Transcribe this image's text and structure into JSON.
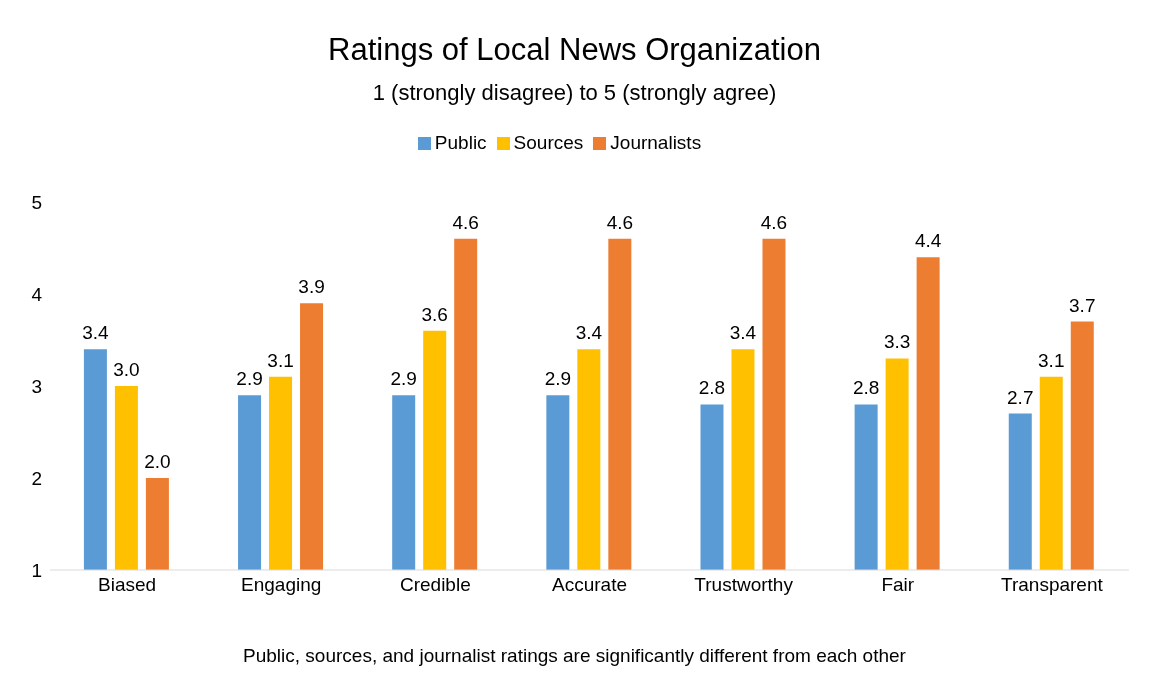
{
  "chart_data": {
    "type": "bar",
    "title": "Ratings of Local News Organization",
    "subtitle": "1 (strongly disagree) to 5 (strongly agree)",
    "categories": [
      "Biased",
      "Engaging",
      "Credible",
      "Accurate",
      "Trustworthy",
      "Fair",
      "Transparent"
    ],
    "series": [
      {
        "name": "Public",
        "color": "#5b9bd5",
        "values": [
          3.4,
          2.9,
          2.9,
          2.9,
          2.8,
          2.8,
          2.7
        ],
        "value_labels": [
          "3.4",
          "2.9",
          "2.9",
          "2.9",
          "2.8",
          "2.8",
          "2.7"
        ]
      },
      {
        "name": "Sources",
        "color": "#ffc000",
        "values": [
          3.0,
          3.1,
          3.6,
          3.4,
          3.4,
          3.3,
          3.1
        ],
        "value_labels": [
          "3.0",
          "3.1",
          "3.6",
          "3.4",
          "3.4",
          "3.3",
          "3.1"
        ]
      },
      {
        "name": "Journalists",
        "color": "#ed7d31",
        "values": [
          2.0,
          3.9,
          4.6,
          4.6,
          4.6,
          4.4,
          3.7
        ],
        "value_labels": [
          "2.0",
          "3.9",
          "4.6",
          "4.6",
          "4.6",
          "4.4",
          "3.7"
        ]
      }
    ],
    "ylim": [
      1,
      5
    ],
    "yticks": [
      1,
      2,
      3,
      4,
      5
    ],
    "grid": false,
    "legend": "top",
    "annotations": [
      "Public, sources, and journalist ratings are significantly different from each other"
    ]
  }
}
